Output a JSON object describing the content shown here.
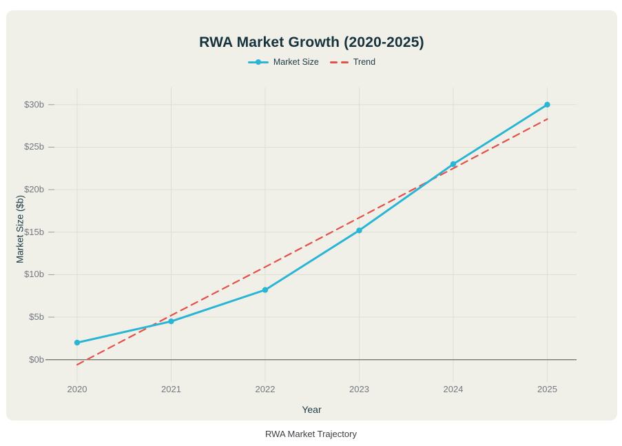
{
  "figure": {
    "caption": "RWA Market Trajectory"
  },
  "colors": {
    "card_background": "#f0f0e9",
    "title_text": "#15323d",
    "axis_title_text": "#1d3a45",
    "legend_text": "#1d3a45",
    "tick_label_text": "#74787e",
    "gridline": "#dcded4",
    "tick_mark": "#9a9d96",
    "zero_line": "#7e807b",
    "caption_text": "#3c4043",
    "market_size_line": "#29b5d3",
    "trend_line": "#e3504a"
  },
  "chart_data": {
    "type": "line",
    "title": "RWA Market Growth (2020-2025)",
    "xlabel": "Year",
    "ylabel": "Market Size ($b)",
    "categories": [
      "2020",
      "2021",
      "2022",
      "2023",
      "2024",
      "2025"
    ],
    "series": [
      {
        "name": "Market Size",
        "values": [
          2,
          4.5,
          8.2,
          15.2,
          23,
          30
        ],
        "color": "#29b5d3",
        "style": "solid",
        "markers": true
      },
      {
        "name": "Trend",
        "values": [
          -0.6,
          5.2,
          10.9,
          16.7,
          22.5,
          28.3
        ],
        "color": "#e3504a",
        "style": "dashed",
        "markers": false
      }
    ],
    "y_ticks": [
      {
        "value": 0,
        "label": "$0b"
      },
      {
        "value": 5,
        "label": "$5b"
      },
      {
        "value": 10,
        "label": "$10b"
      },
      {
        "value": 15,
        "label": "$15b"
      },
      {
        "value": 20,
        "label": "$20b"
      },
      {
        "value": 25,
        "label": "$25b"
      },
      {
        "value": 30,
        "label": "$30b"
      }
    ],
    "ylim": [
      0,
      30
    ],
    "grid": true,
    "legend_position": "top"
  }
}
